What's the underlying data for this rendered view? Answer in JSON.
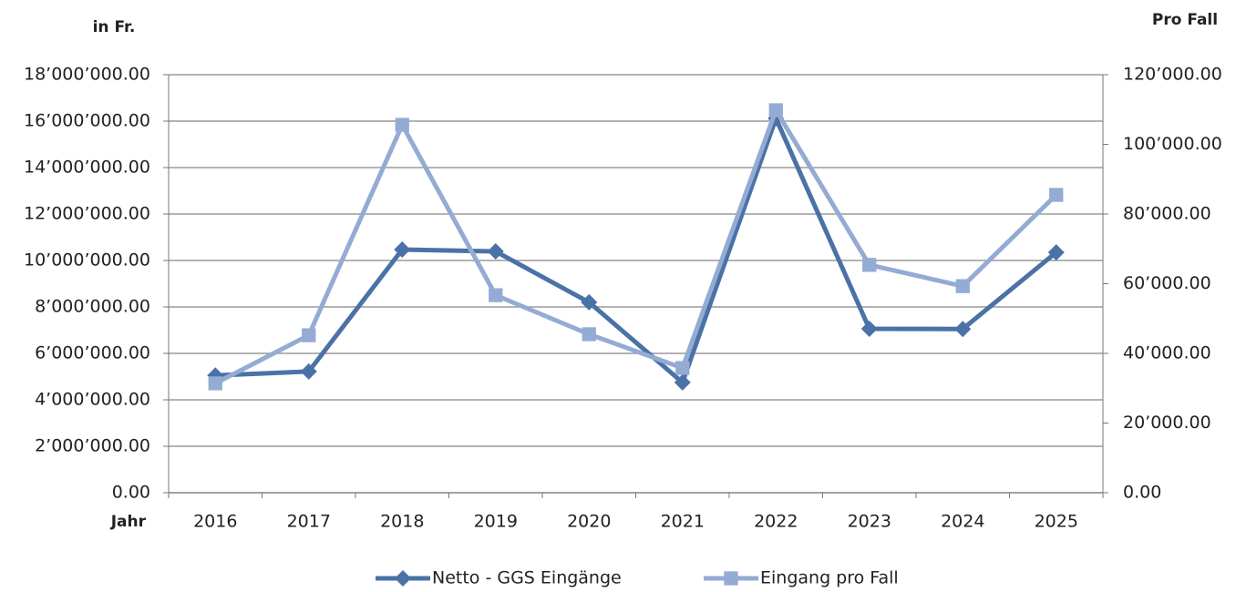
{
  "chart_data": {
    "type": "line",
    "y_label": "in Fr.",
    "y2_label": "Pro Fall",
    "x_label": "Jahr",
    "categories": [
      "2016",
      "2017",
      "2018",
      "2019",
      "2020",
      "2021",
      "2022",
      "2023",
      "2024",
      "2025"
    ],
    "series": [
      {
        "name": "Netto - GGS Eingänge",
        "color": "#4a72a6",
        "marker": "diamond",
        "values": [
          5050000,
          5220000,
          10470000,
          10390000,
          8200000,
          4750000,
          16120000,
          7060000,
          7050000,
          10350000
        ]
      },
      {
        "name": "Eingang pro Fall",
        "color": "#94abd3",
        "marker": "square",
        "axis": "y2",
        "values": [
          31400,
          45200,
          105600,
          56700,
          45500,
          35800,
          109800,
          65400,
          59300,
          85500
        ]
      }
    ],
    "ylim": [
      0,
      18000000
    ],
    "yticks": [
      {
        "value": 0,
        "label": "0.00"
      },
      {
        "value": 2000000,
        "label": "2’000’000.00"
      },
      {
        "value": 4000000,
        "label": "4’000’000.00"
      },
      {
        "value": 6000000,
        "label": "6’000’000.00"
      },
      {
        "value": 8000000,
        "label": "8’000’000.00"
      },
      {
        "value": 10000000,
        "label": "10’000’000.00"
      },
      {
        "value": 12000000,
        "label": "12’000’000.00"
      },
      {
        "value": 14000000,
        "label": "14’000’000.00"
      },
      {
        "value": 16000000,
        "label": "16’000’000.00"
      },
      {
        "value": 18000000,
        "label": "18’000’000.00"
      }
    ],
    "y2lim": [
      0,
      120000
    ],
    "y2ticks": [
      {
        "value": 0,
        "label": "0.00"
      },
      {
        "value": 20000,
        "label": "20’000.00"
      },
      {
        "value": 40000,
        "label": "40’000.00"
      },
      {
        "value": 60000,
        "label": "60’000.00"
      },
      {
        "value": 80000,
        "label": "80’000.00"
      },
      {
        "value": 100000,
        "label": "100’000.00"
      },
      {
        "value": 120000,
        "label": "120’000.00"
      }
    ],
    "grid": true,
    "legend": "bottom"
  }
}
